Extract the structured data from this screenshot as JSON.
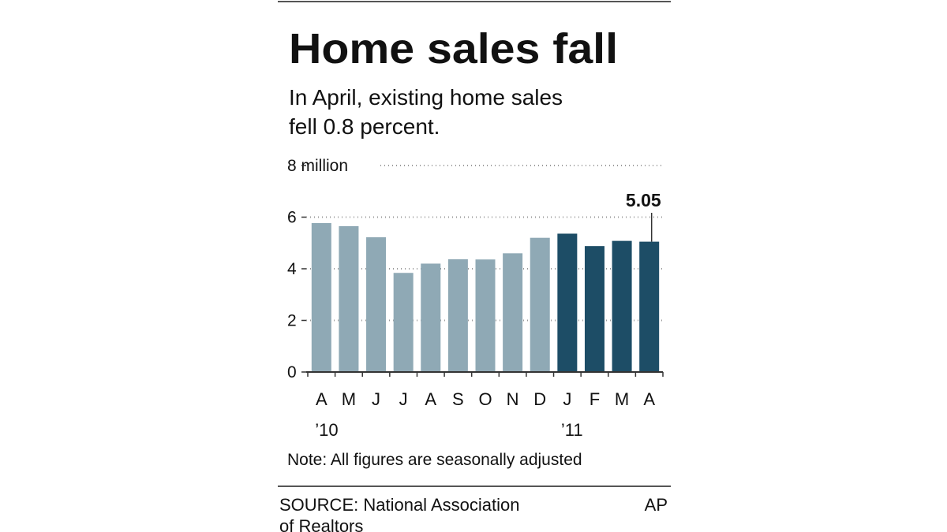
{
  "chart_data": {
    "type": "bar",
    "title": "Home sales fall",
    "subtitle": [
      "In April, existing home sales",
      "fell 0.8 percent."
    ],
    "categories": [
      "A",
      "M",
      "J",
      "J",
      "A",
      "S",
      "O",
      "N",
      "D",
      "J",
      "F",
      "M",
      "A"
    ],
    "year_labels": [
      "’10",
      null,
      null,
      null,
      null,
      null,
      null,
      null,
      null,
      "’11",
      null,
      null,
      null
    ],
    "values": [
      5.77,
      5.65,
      5.22,
      3.84,
      4.2,
      4.37,
      4.36,
      4.6,
      5.2,
      5.36,
      4.88,
      5.08,
      5.05
    ],
    "colors": [
      "#8fa9b5",
      "#8fa9b5",
      "#8fa9b5",
      "#8fa9b5",
      "#8fa9b5",
      "#8fa9b5",
      "#8fa9b5",
      "#8fa9b5",
      "#8fa9b5",
      "#1d4d66",
      "#1d4d66",
      "#1d4d66",
      "#1d4d66"
    ],
    "labeled_index": 12,
    "ylim": [
      0,
      8
    ],
    "yticks": [
      0,
      2,
      4,
      6,
      {
        "value": 8,
        "label": "8 million"
      }
    ],
    "grid": true,
    "note": "Note: All figures are seasonally adjusted",
    "source": [
      "SOURCE: National Association",
      "of Realtors"
    ],
    "credit": "AP"
  }
}
